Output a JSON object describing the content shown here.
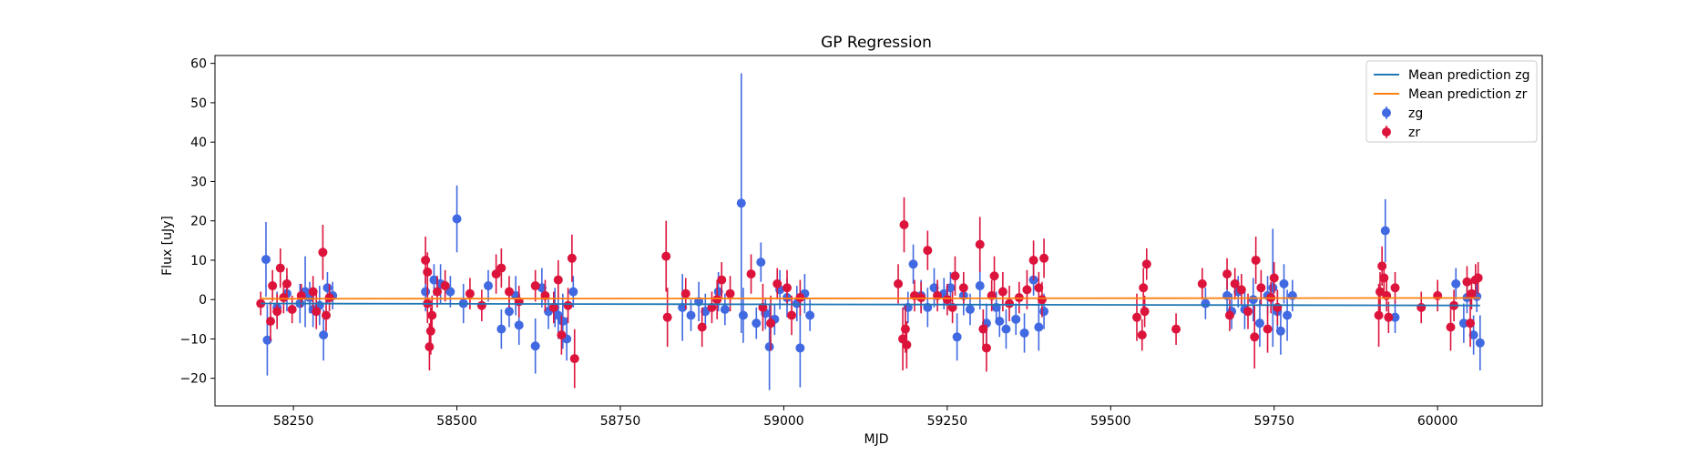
{
  "chart_data": {
    "type": "scatter",
    "title": "GP Regression",
    "xlabel": "MJD",
    "ylabel": "Flux [uJy]",
    "xlim": [
      58130,
      60160
    ],
    "ylim": [
      -27,
      62
    ],
    "xticks": [
      58250,
      58500,
      58750,
      59000,
      59250,
      59500,
      59750,
      60000
    ],
    "yticks": [
      -20,
      -10,
      0,
      10,
      20,
      30,
      40,
      50,
      60
    ],
    "grid": false,
    "legend_position": "top-right",
    "lines": [
      {
        "name": "Mean prediction zg",
        "color": "#1f77b4",
        "x": [
          58200,
          60065
        ],
        "y": [
          -1.0,
          -1.5
        ]
      },
      {
        "name": "Mean prediction zr",
        "color": "#ff7f0e",
        "x": [
          58200,
          60065
        ],
        "y": [
          0.2,
          0.4
        ]
      }
    ],
    "series": [
      {
        "name": "zg",
        "color": "#4169e1",
        "points": [
          [
            58208,
            10.2,
            9.5
          ],
          [
            58210,
            -10.3,
            9.0
          ],
          [
            58225,
            -2.0,
            4.0
          ],
          [
            58240,
            1.5,
            4.5
          ],
          [
            58260,
            -1.0,
            5.0
          ],
          [
            58268,
            2.0,
            9.0
          ],
          [
            58275,
            0.5,
            4.0
          ],
          [
            58280,
            -2.5,
            4.5
          ],
          [
            58290,
            -1.5,
            5.0
          ],
          [
            58296,
            -9.0,
            6.5
          ],
          [
            58302,
            3.0,
            4.0
          ],
          [
            58310,
            1.0,
            3.5
          ],
          [
            58452,
            2.0,
            5.0
          ],
          [
            58465,
            5.0,
            4.0
          ],
          [
            58475,
            4.0,
            5.0
          ],
          [
            58490,
            2.0,
            4.0
          ],
          [
            58500,
            20.5,
            8.5
          ],
          [
            58510,
            -1.0,
            5.0
          ],
          [
            58548,
            3.5,
            4.0
          ],
          [
            58568,
            -7.5,
            5.0
          ],
          [
            58580,
            -3.0,
            4.0
          ],
          [
            58590,
            1.0,
            5.0
          ],
          [
            58595,
            -6.5,
            5.0
          ],
          [
            58620,
            -11.8,
            7.0
          ],
          [
            58630,
            3.0,
            5.0
          ],
          [
            58640,
            -3.0,
            4.5
          ],
          [
            58650,
            -2.0,
            5.0
          ],
          [
            58655,
            -4.0,
            6.0
          ],
          [
            58662,
            -5.5,
            7.0
          ],
          [
            58668,
            -10.0,
            5.5
          ],
          [
            58678,
            2.0,
            4.0
          ],
          [
            58845,
            -2.0,
            8.5
          ],
          [
            58858,
            -4.0,
            4.0
          ],
          [
            58870,
            -0.5,
            5.0
          ],
          [
            58880,
            -3.0,
            4.5
          ],
          [
            58900,
            2.0,
            5.0
          ],
          [
            58910,
            -2.5,
            4.0
          ],
          [
            58935,
            24.5,
            33.0
          ],
          [
            58938,
            -4.0,
            7.0
          ],
          [
            58958,
            -6.0,
            4.0
          ],
          [
            58965,
            9.5,
            5.0
          ],
          [
            58972,
            -3.5,
            4.0
          ],
          [
            58978,
            -12.0,
            11.0
          ],
          [
            58986,
            -5.0,
            4.0
          ],
          [
            58994,
            2.5,
            5.0
          ],
          [
            59005,
            0.5,
            5.0
          ],
          [
            59020,
            -1.0,
            4.5
          ],
          [
            59025,
            -12.3,
            10.0
          ],
          [
            59032,
            1.5,
            5.0
          ],
          [
            59040,
            -4.0,
            4.0
          ],
          [
            59190,
            -2.0,
            4.0
          ],
          [
            59198,
            9.0,
            5.0
          ],
          [
            59210,
            1.0,
            4.0
          ],
          [
            59220,
            -2.0,
            5.0
          ],
          [
            59230,
            3.0,
            5.0
          ],
          [
            59245,
            1.5,
            4.0
          ],
          [
            59255,
            3.0,
            4.0
          ],
          [
            59265,
            -9.5,
            6.0
          ],
          [
            59275,
            1.0,
            5.0
          ],
          [
            59285,
            -2.5,
            4.0
          ],
          [
            59300,
            3.5,
            6.0
          ],
          [
            59310,
            -6.0,
            5.0
          ],
          [
            59325,
            -2.0,
            4.0
          ],
          [
            59330,
            -5.5,
            4.0
          ],
          [
            59340,
            -7.5,
            5.0
          ],
          [
            59355,
            -5.0,
            4.0
          ],
          [
            59368,
            -8.5,
            5.0
          ],
          [
            59382,
            5.0,
            4.0
          ],
          [
            59390,
            -7.0,
            6.0
          ],
          [
            59398,
            -3.0,
            4.5
          ],
          [
            59645,
            -1.0,
            4.0
          ],
          [
            59678,
            1.0,
            5.0
          ],
          [
            59685,
            -3.0,
            4.5
          ],
          [
            59695,
            2.0,
            4.0
          ],
          [
            59705,
            -2.5,
            5.0
          ],
          [
            59718,
            0.0,
            5.5
          ],
          [
            59728,
            -6.0,
            6.0
          ],
          [
            59740,
            1.0,
            5.0
          ],
          [
            59748,
            3.0,
            15.0
          ],
          [
            59755,
            -3.0,
            5.0
          ],
          [
            59760,
            -8.0,
            6.0
          ],
          [
            59765,
            4.0,
            5.0
          ],
          [
            59770,
            -4.0,
            6.5
          ],
          [
            59778,
            1.0,
            4.0
          ],
          [
            59920,
            17.5,
            8.0
          ],
          [
            59935,
            -4.5,
            4.0
          ],
          [
            60028,
            4.0,
            4.0
          ],
          [
            60040,
            -6.0,
            5.0
          ],
          [
            60045,
            0.5,
            4.0
          ],
          [
            60055,
            -9.0,
            5.0
          ],
          [
            60060,
            0.8,
            4.0
          ],
          [
            60065,
            -11.0,
            7.0
          ]
        ]
      },
      {
        "name": "zr",
        "color": "#dc143c",
        "points": [
          [
            58200,
            -1.0,
            3.0
          ],
          [
            58215,
            -5.5,
            5.0
          ],
          [
            58218,
            3.5,
            4.0
          ],
          [
            58225,
            -3.0,
            4.5
          ],
          [
            58230,
            8.0,
            5.0
          ],
          [
            58235,
            0.5,
            4.0
          ],
          [
            58240,
            4.0,
            4.0
          ],
          [
            58248,
            -2.5,
            3.5
          ],
          [
            58262,
            1.0,
            3.0
          ],
          [
            58280,
            2.0,
            4.0
          ],
          [
            58285,
            -3.0,
            4.5
          ],
          [
            58295,
            12.0,
            7.0
          ],
          [
            58300,
            -4.0,
            4.0
          ],
          [
            58305,
            0.5,
            3.5
          ],
          [
            58452,
            10.0,
            6.0
          ],
          [
            58455,
            7.0,
            5.0
          ],
          [
            58455,
            -1.0,
            5.0
          ],
          [
            58458,
            -12.0,
            6.0
          ],
          [
            58460,
            -8.0,
            6.0
          ],
          [
            58462,
            -4.0,
            5.0
          ],
          [
            58470,
            2.0,
            4.0
          ],
          [
            58482,
            3.5,
            4.0
          ],
          [
            58520,
            1.5,
            4.0
          ],
          [
            58538,
            -1.5,
            4.0
          ],
          [
            58560,
            6.5,
            5.0
          ],
          [
            58568,
            8.0,
            5.0
          ],
          [
            58580,
            2.0,
            4.0
          ],
          [
            58595,
            -0.5,
            4.0
          ],
          [
            58620,
            3.5,
            4.0
          ],
          [
            58635,
            1.0,
            4.0
          ],
          [
            58648,
            -2.0,
            4.0
          ],
          [
            58655,
            5.0,
            5.0
          ],
          [
            58660,
            -9.0,
            5.0
          ],
          [
            58670,
            -1.5,
            4.5
          ],
          [
            58676,
            10.5,
            6.0
          ],
          [
            58680,
            -15.0,
            7.5
          ],
          [
            58820,
            11.0,
            9.0
          ],
          [
            58822,
            -4.5,
            7.5
          ],
          [
            58850,
            1.5,
            4.0
          ],
          [
            58875,
            -7.0,
            5.0
          ],
          [
            58890,
            -2.0,
            4.0
          ],
          [
            58898,
            0.0,
            5.0
          ],
          [
            58905,
            5.0,
            4.5
          ],
          [
            58918,
            1.5,
            4.5
          ],
          [
            58950,
            6.5,
            5.0
          ],
          [
            58968,
            -2.0,
            6.0
          ],
          [
            58980,
            -6.0,
            7.0
          ],
          [
            58990,
            4.0,
            4.0
          ],
          [
            59005,
            3.0,
            4.5
          ],
          [
            59012,
            -4.0,
            5.0
          ],
          [
            59025,
            0.5,
            4.5
          ],
          [
            59175,
            4.0,
            5.0
          ],
          [
            59182,
            -10.0,
            8.0
          ],
          [
            59184,
            19.0,
            7.0
          ],
          [
            59186,
            -7.5,
            6.0
          ],
          [
            59188,
            -11.5,
            6.0
          ],
          [
            59200,
            1.0,
            4.0
          ],
          [
            59210,
            0.5,
            4.0
          ],
          [
            59220,
            12.5,
            5.0
          ],
          [
            59235,
            1.0,
            4.0
          ],
          [
            59250,
            0.0,
            4.0
          ],
          [
            59258,
            -2.0,
            4.0
          ],
          [
            59262,
            6.0,
            5.0
          ],
          [
            59275,
            3.0,
            4.0
          ],
          [
            59300,
            14.0,
            7.0
          ],
          [
            59305,
            -7.5,
            5.0
          ],
          [
            59310,
            -12.3,
            6.0
          ],
          [
            59318,
            1.0,
            4.0
          ],
          [
            59322,
            6.0,
            5.0
          ],
          [
            59335,
            2.0,
            5.0
          ],
          [
            59345,
            -1.0,
            4.5
          ],
          [
            59360,
            0.5,
            4.0
          ],
          [
            59372,
            2.5,
            5.0
          ],
          [
            59382,
            10.0,
            5.0
          ],
          [
            59390,
            3.0,
            4.0
          ],
          [
            59395,
            0.0,
            4.5
          ],
          [
            59398,
            10.5,
            5.0
          ],
          [
            59540,
            -4.5,
            6.0
          ],
          [
            59548,
            -9.0,
            4.0
          ],
          [
            59550,
            3.0,
            5.0
          ],
          [
            59552,
            -3.0,
            4.0
          ],
          [
            59555,
            9.0,
            4.0
          ],
          [
            59600,
            -7.5,
            4.0
          ],
          [
            59640,
            4.0,
            4.0
          ],
          [
            59678,
            6.5,
            4.0
          ],
          [
            59682,
            -4.0,
            4.0
          ],
          [
            59690,
            4.0,
            4.0
          ],
          [
            59700,
            2.5,
            4.0
          ],
          [
            59710,
            -3.0,
            4.5
          ],
          [
            59720,
            -9.5,
            8.0
          ],
          [
            59722,
            10.0,
            6.0
          ],
          [
            59730,
            3.0,
            4.5
          ],
          [
            59740,
            -7.5,
            6.0
          ],
          [
            59745,
            0.5,
            4.0
          ],
          [
            59750,
            5.5,
            4.0
          ],
          [
            59755,
            -2.0,
            4.5
          ],
          [
            59910,
            -4.0,
            8.0
          ],
          [
            59912,
            2.0,
            5.0
          ],
          [
            59915,
            8.5,
            5.0
          ],
          [
            59918,
            5.5,
            4.0
          ],
          [
            59922,
            1.0,
            4.0
          ],
          [
            59925,
            -4.5,
            4.0
          ],
          [
            59935,
            3.0,
            4.0
          ],
          [
            59975,
            -2.0,
            4.0
          ],
          [
            60000,
            1.0,
            4.0
          ],
          [
            60020,
            -7.0,
            6.0
          ],
          [
            60025,
            -1.5,
            4.0
          ],
          [
            60045,
            4.5,
            4.0
          ],
          [
            60050,
            -6.0,
            6.0
          ],
          [
            60052,
            1.5,
            4.0
          ],
          [
            60058,
            5.0,
            4.0
          ],
          [
            60062,
            5.5,
            4.0
          ]
        ]
      }
    ]
  }
}
